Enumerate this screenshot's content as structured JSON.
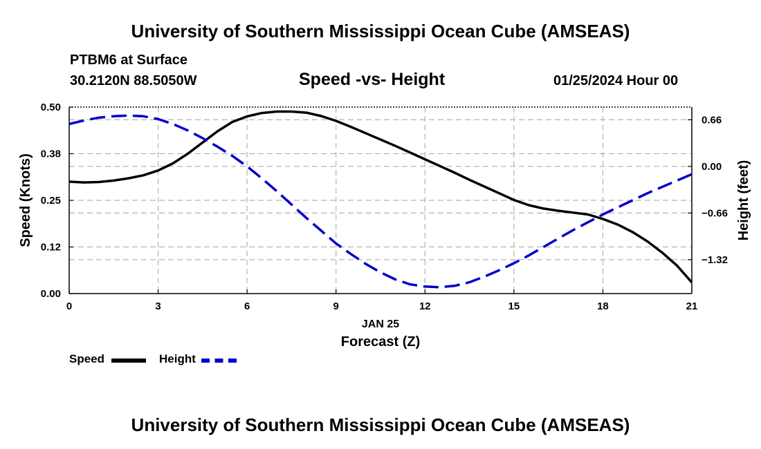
{
  "header": {
    "title": "University of Southern Mississippi Ocean Cube (AMSEAS)",
    "station": "PTBM6 at Surface",
    "coords": "30.2120N  88.5050W",
    "chart_title": "Speed -vs- Height",
    "datetime": "01/25/2024 Hour 00"
  },
  "footer": {
    "title": "University of Southern Mississippi Ocean Cube (AMSEAS)"
  },
  "colors": {
    "speed": "#000000",
    "height": "#0000cc",
    "grid": "#b4b4b4"
  },
  "chart_data": {
    "type": "line",
    "title": "Speed -vs- Height",
    "xlabel": "Forecast (Z)",
    "xsublabel": "JAN 25",
    "ylabel": "Speed (Knots)",
    "y2label": "Height (feet)",
    "xlim": [
      0,
      21
    ],
    "ylim": [
      0,
      0.5
    ],
    "y2lim": [
      -1.8,
      0.84
    ],
    "x_ticks": [
      0,
      3,
      6,
      9,
      12,
      15,
      18,
      21
    ],
    "x_tick_labels": [
      "0",
      "3",
      "6",
      "9",
      "12",
      "15",
      "18",
      "21"
    ],
    "y_ticks": [
      0,
      0.125,
      0.25,
      0.375,
      0.5
    ],
    "y_tick_labels": [
      "0.00",
      "0.12",
      "0.25",
      "0.38",
      "0.50"
    ],
    "y2_ticks": [
      0.66,
      0,
      -0.66,
      -1.32
    ],
    "y2_tick_labels": [
      "0.66",
      "0.00",
      "−0.66",
      "−1.32"
    ],
    "grid": true,
    "legend": "bottom-left",
    "series": [
      {
        "name": "Speed",
        "axis": "left",
        "style": "solid",
        "x": [
          0,
          0.5,
          1,
          1.5,
          2,
          2.5,
          3,
          3.5,
          4,
          4.5,
          5,
          5.5,
          6,
          6.5,
          7,
          7.5,
          8,
          8.5,
          9,
          9.5,
          10,
          10.5,
          11,
          11.5,
          12,
          12.5,
          13,
          13.5,
          14,
          14.5,
          15,
          15.5,
          16,
          16.5,
          17,
          17.5,
          18,
          18.5,
          19,
          19.5,
          20,
          20.5,
          21
        ],
        "values": [
          0.3,
          0.298,
          0.299,
          0.303,
          0.309,
          0.317,
          0.33,
          0.349,
          0.375,
          0.405,
          0.435,
          0.46,
          0.475,
          0.484,
          0.488,
          0.488,
          0.485,
          0.476,
          0.463,
          0.447,
          0.43,
          0.413,
          0.396,
          0.378,
          0.36,
          0.342,
          0.324,
          0.305,
          0.287,
          0.269,
          0.251,
          0.237,
          0.228,
          0.222,
          0.217,
          0.212,
          0.2,
          0.185,
          0.165,
          0.14,
          0.11,
          0.075,
          0.03
        ]
      },
      {
        "name": "Height",
        "axis": "right",
        "style": "dashed",
        "x": [
          0,
          0.5,
          1,
          1.5,
          2,
          2.5,
          3,
          3.5,
          4,
          4.5,
          5,
          5.5,
          6,
          6.5,
          7,
          7.5,
          8,
          8.5,
          9,
          9.5,
          10,
          10.5,
          11,
          11.5,
          12,
          12.5,
          13,
          13.5,
          14,
          14.5,
          15,
          15.5,
          16,
          16.5,
          17,
          17.5,
          18,
          18.5,
          19,
          19.5,
          20,
          20.5,
          21
        ],
        "values": [
          0.6,
          0.65,
          0.69,
          0.71,
          0.72,
          0.71,
          0.67,
          0.6,
          0.51,
          0.4,
          0.28,
          0.15,
          0.0,
          -0.17,
          -0.35,
          -0.54,
          -0.73,
          -0.91,
          -1.09,
          -1.24,
          -1.38,
          -1.5,
          -1.6,
          -1.67,
          -1.7,
          -1.71,
          -1.69,
          -1.64,
          -1.56,
          -1.47,
          -1.37,
          -1.26,
          -1.14,
          -1.02,
          -0.9,
          -0.79,
          -0.68,
          -0.58,
          -0.48,
          -0.38,
          -0.29,
          -0.2,
          -0.11
        ]
      }
    ]
  }
}
